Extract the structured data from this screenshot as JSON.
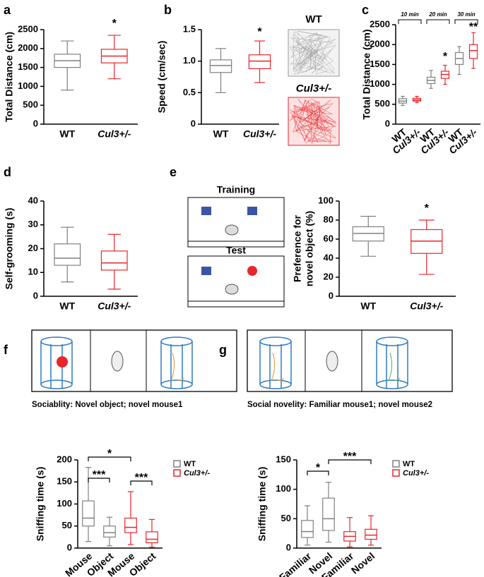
{
  "chart_data": [
    {
      "type": "box",
      "panel": "a",
      "ylabel": [
        "Total Distance (cm)"
      ],
      "ylim": [
        0,
        2500
      ],
      "yticks": [
        0,
        500,
        1000,
        1500,
        2000,
        2500
      ],
      "boxes": [
        {
          "category": "WT",
          "color": "#808080",
          "min": 900,
          "q1": 1500,
          "median": 1680,
          "q3": 1850,
          "max": 2200
        },
        {
          "category": "Cul3+/-",
          "color": "#e8262a",
          "min": 1200,
          "q1": 1620,
          "median": 1800,
          "q3": 1980,
          "max": 2350
        }
      ],
      "significance": [
        "*"
      ]
    },
    {
      "type": "box",
      "panel": "b",
      "ylabel": [
        "Speed (cm/sec)"
      ],
      "ylim": [
        0,
        1.5
      ],
      "yticks": [
        0,
        0.5,
        {
          "value": 1,
          "label": "1.0"
        },
        1.5
      ],
      "boxes": [
        {
          "category": "WT",
          "color": "#808080",
          "min": 0.5,
          "q1": 0.82,
          "median": 0.93,
          "q3": 1.02,
          "max": 1.2
        },
        {
          "category": "Cul3+/-",
          "color": "#e8262a",
          "min": 0.66,
          "q1": 0.88,
          "median": 1.0,
          "q3": 1.1,
          "max": 1.32
        }
      ],
      "significance": [
        "*"
      ],
      "trace_labels": [
        "WT",
        "Cul3+/-"
      ]
    },
    {
      "type": "box",
      "panel": "c",
      "ylabel": [
        "Total Distance (cm)"
      ],
      "ylim": [
        0,
        2500
      ],
      "yticks": [
        0,
        500,
        1000,
        1500,
        2000,
        2500
      ],
      "boxes": [
        {
          "category": "WT",
          "color": "#808080",
          "min": 470,
          "q1": 530,
          "median": 580,
          "q3": 640,
          "max": 700
        },
        {
          "category": "Cul3+/-",
          "color": "#e8262a",
          "min": 540,
          "q1": 580,
          "median": 610,
          "q3": 650,
          "max": 700
        },
        {
          "category": "WT",
          "color": "#808080",
          "min": 900,
          "q1": 1020,
          "median": 1100,
          "q3": 1180,
          "max": 1350
        },
        {
          "category": "Cul3+/-",
          "color": "#e8262a",
          "min": 1000,
          "q1": 1150,
          "median": 1250,
          "q3": 1330,
          "max": 1480
        },
        {
          "category": "WT",
          "color": "#808080",
          "min": 1250,
          "q1": 1500,
          "median": 1650,
          "q3": 1800,
          "max": 1950
        },
        {
          "category": "Cul3+/-",
          "color": "#e8262a",
          "min": 1400,
          "q1": 1650,
          "median": 1850,
          "q3": 2000,
          "max": 2300
        }
      ],
      "significance": [
        "*",
        "**"
      ],
      "periods": [
        "10 min",
        "20 min",
        "30 min"
      ]
    },
    {
      "type": "box",
      "panel": "d",
      "ylabel": [
        "Self-grooming (s)"
      ],
      "ylim": [
        0,
        40
      ],
      "yticks": [
        0,
        10,
        20,
        30,
        40
      ],
      "boxes": [
        {
          "category": "WT",
          "color": "#808080",
          "min": 6,
          "q1": 13,
          "median": 16,
          "q3": 22,
          "max": 29
        },
        {
          "category": "Cul3+/-",
          "color": "#e8262a",
          "min": 3,
          "q1": 11,
          "median": 14,
          "q3": 19,
          "max": 26
        }
      ],
      "significance": []
    },
    {
      "type": "box",
      "panel": "e",
      "ylabel": [
        "Preference for",
        "novel object (%)"
      ],
      "ylim": [
        0,
        100
      ],
      "yticks": [
        0,
        20,
        40,
        60,
        80,
        100
      ],
      "boxes": [
        {
          "category": "WT",
          "color": "#808080",
          "min": 42,
          "q1": 58,
          "median": 66,
          "q3": 73,
          "max": 84
        },
        {
          "category": "Cul3+/-",
          "color": "#e8262a",
          "min": 23,
          "q1": 45,
          "median": 58,
          "q3": 70,
          "max": 80
        }
      ],
      "significance": [
        "*"
      ],
      "diagram_labels": [
        "Training",
        "Test"
      ]
    },
    {
      "type": "box",
      "panel": "f",
      "ylabel": [
        "Sniffing time (s)"
      ],
      "ylim": [
        0,
        200
      ],
      "yticks": [
        0,
        50,
        100,
        150,
        200
      ],
      "boxes": [
        {
          "category": "Mouse",
          "color": "#808080",
          "min": 15,
          "q1": 50,
          "median": 68,
          "q3": 107,
          "max": 183
        },
        {
          "category": "Object",
          "color": "#808080",
          "min": 5,
          "q1": 25,
          "median": 35,
          "q3": 50,
          "max": 70
        },
        {
          "category": "Mouse",
          "color": "#e8262a",
          "min": 8,
          "q1": 35,
          "median": 47,
          "q3": 68,
          "max": 128
        },
        {
          "category": "Object",
          "color": "#e8262a",
          "min": 2,
          "q1": 12,
          "median": 20,
          "q3": 37,
          "max": 65
        }
      ],
      "significance": [
        "***",
        "*",
        "***"
      ],
      "caption": "Sociablity: Novel object; novel mouse1",
      "legend": [
        {
          "name": "WT",
          "color": "#808080"
        },
        {
          "name": "Cul3+/-",
          "color": "#e8262a"
        }
      ]
    },
    {
      "type": "box",
      "panel": "g",
      "ylabel": [
        "Sniffing time (s)"
      ],
      "ylim": [
        0,
        150
      ],
      "yticks": [
        0,
        50,
        100,
        150
      ],
      "boxes": [
        {
          "category": "Familiar",
          "color": "#808080",
          "min": 5,
          "q1": 18,
          "median": 28,
          "q3": 47,
          "max": 72
        },
        {
          "category": "Novel",
          "color": "#808080",
          "min": 10,
          "q1": 30,
          "median": 50,
          "q3": 85,
          "max": 112
        },
        {
          "category": "Familiar",
          "color": "#e8262a",
          "min": 2,
          "q1": 12,
          "median": 20,
          "q3": 28,
          "max": 52
        },
        {
          "category": "Novel",
          "color": "#e8262a",
          "min": 5,
          "q1": 15,
          "median": 22,
          "q3": 32,
          "max": 55
        }
      ],
      "significance": [
        "*",
        "***"
      ],
      "caption": "Social novelity: Familiar mouse1; novel mouse2",
      "legend": [
        {
          "name": "WT",
          "color": "#808080"
        },
        {
          "name": "Cul3+/-",
          "color": "#e8262a"
        }
      ]
    }
  ]
}
